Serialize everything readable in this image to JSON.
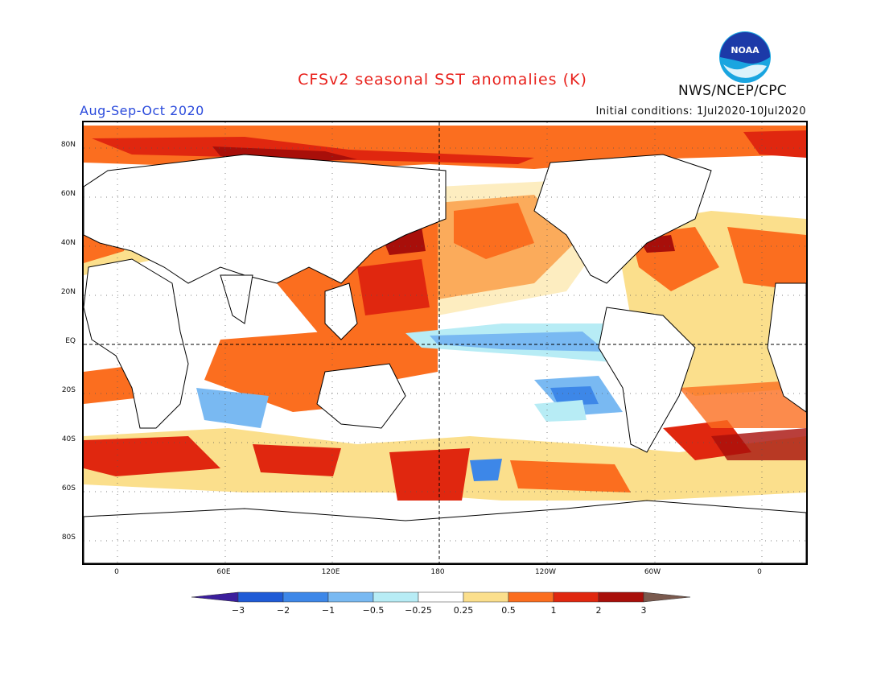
{
  "header": {
    "title": "CFSv2 seasonal SST anomalies (K)",
    "period": "Aug-Sep-Oct 2020",
    "initial_conditions": "Initial conditions: 1Jul2020-10Jul2020",
    "organization": "NWS/NCEP/CPC",
    "logo_text": "NOAA"
  },
  "map": {
    "lat_labels": [
      "80N",
      "60N",
      "40N",
      "20N",
      "EQ",
      "20S",
      "40S",
      "60S",
      "80S"
    ],
    "lon_labels": [
      "0",
      "60E",
      "120E",
      "180",
      "120W",
      "60W",
      "0"
    ]
  },
  "colorbar": {
    "ticks": [
      "−3",
      "−2",
      "−1",
      "−0.5",
      "−0.25",
      "0.25",
      "0.5",
      "1",
      "2",
      "3"
    ],
    "colors": [
      "#3b1e9c",
      "#1f5bd6",
      "#3d87e8",
      "#79b9f2",
      "#b7ecf5",
      "#ffffff",
      "#fbdf8c",
      "#fb6e1f",
      "#e0270f",
      "#a80f0a",
      "#7a5a4e"
    ]
  }
}
